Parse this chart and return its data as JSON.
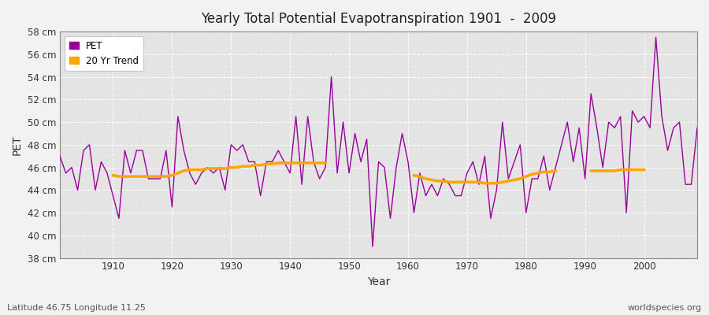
{
  "title": "Yearly Total Potential Evapotranspiration 1901  -  2009",
  "xlabel": "Year",
  "ylabel": "PET",
  "subtitle_left": "Latitude 46.75 Longitude 11.25",
  "subtitle_right": "worldspecies.org",
  "ylim": [
    38,
    58
  ],
  "ytick_labels": [
    "38 cm",
    "40 cm",
    "42 cm",
    "44 cm",
    "46 cm",
    "48 cm",
    "50 cm",
    "52 cm",
    "54 cm",
    "56 cm",
    "58 cm"
  ],
  "ytick_values": [
    38,
    40,
    42,
    44,
    46,
    48,
    50,
    52,
    54,
    56,
    58
  ],
  "pet_color": "#990099",
  "trend_color": "#FFA500",
  "fig_bg_color": "#F0F0F0",
  "plot_bg_color": "#E8E8E8",
  "legend_labels": [
    "PET",
    "20 Yr Trend"
  ],
  "years": [
    1901,
    1902,
    1903,
    1904,
    1905,
    1906,
    1907,
    1908,
    1909,
    1910,
    1911,
    1912,
    1913,
    1914,
    1915,
    1916,
    1917,
    1918,
    1919,
    1920,
    1921,
    1922,
    1923,
    1924,
    1925,
    1926,
    1927,
    1928,
    1929,
    1930,
    1931,
    1932,
    1933,
    1934,
    1935,
    1936,
    1937,
    1938,
    1939,
    1940,
    1941,
    1942,
    1943,
    1944,
    1945,
    1946,
    1947,
    1948,
    1949,
    1950,
    1951,
    1952,
    1953,
    1954,
    1955,
    1956,
    1957,
    1958,
    1959,
    1960,
    1961,
    1962,
    1963,
    1964,
    1965,
    1966,
    1967,
    1968,
    1969,
    1970,
    1971,
    1972,
    1973,
    1974,
    1975,
    1976,
    1977,
    1978,
    1979,
    1980,
    1981,
    1982,
    1983,
    1984,
    1985,
    1986,
    1987,
    1988,
    1989,
    1990,
    1991,
    1992,
    1993,
    1994,
    1995,
    1996,
    1997,
    1998,
    1999,
    2000,
    2001,
    2002,
    2003,
    2004,
    2005,
    2006,
    2007,
    2008,
    2009
  ],
  "pet_values": [
    47.0,
    45.5,
    46.0,
    44.0,
    47.5,
    48.0,
    44.0,
    46.5,
    45.5,
    43.5,
    41.5,
    47.5,
    45.5,
    47.5,
    47.5,
    45.0,
    45.0,
    45.0,
    47.5,
    42.5,
    50.5,
    47.5,
    45.5,
    44.5,
    45.5,
    46.0,
    45.5,
    46.0,
    44.0,
    48.0,
    47.5,
    48.0,
    46.5,
    46.5,
    43.5,
    46.5,
    46.5,
    47.5,
    46.5,
    45.5,
    50.5,
    44.5,
    50.5,
    46.5,
    45.0,
    46.0,
    54.0,
    45.5,
    50.0,
    45.5,
    49.0,
    46.5,
    48.5,
    39.0,
    46.5,
    46.0,
    41.5,
    46.0,
    49.0,
    46.5,
    42.0,
    45.5,
    43.5,
    44.5,
    43.5,
    45.0,
    44.5,
    43.5,
    43.5,
    45.5,
    46.5,
    44.5,
    47.0,
    41.5,
    44.0,
    50.0,
    45.0,
    46.5,
    48.0,
    42.0,
    45.0,
    45.0,
    47.0,
    44.0,
    46.0,
    48.0,
    50.0,
    46.5,
    49.5,
    45.0,
    52.5,
    49.5,
    46.0,
    50.0,
    49.5,
    50.5,
    42.0,
    51.0,
    50.0,
    50.5,
    49.5,
    57.5,
    50.5,
    47.5,
    49.5,
    50.0,
    44.5,
    44.5,
    49.5
  ],
  "trend_segments": [
    {
      "years": [
        1910,
        1911,
        1912,
        1913,
        1914,
        1915,
        1916,
        1917,
        1918,
        1919,
        1920,
        1921,
        1922,
        1923,
        1924,
        1925,
        1926,
        1927,
        1928,
        1929,
        1930,
        1931,
        1932,
        1933,
        1934,
        1935,
        1936,
        1937,
        1938,
        1939,
        1940,
        1941,
        1942,
        1943,
        1944,
        1945,
        1946
      ],
      "values": [
        45.3,
        45.2,
        45.2,
        45.2,
        45.2,
        45.2,
        45.2,
        45.2,
        45.2,
        45.2,
        45.3,
        45.5,
        45.7,
        45.8,
        45.8,
        45.8,
        45.9,
        45.9,
        45.9,
        45.9,
        46.0,
        46.0,
        46.1,
        46.1,
        46.2,
        46.2,
        46.3,
        46.3,
        46.4,
        46.4,
        46.4,
        46.4,
        46.4,
        46.4,
        46.4,
        46.4,
        46.4
      ]
    },
    {
      "years": [
        1961,
        1962,
        1963,
        1964,
        1965,
        1966,
        1967,
        1968,
        1969,
        1970,
        1971,
        1972,
        1973,
        1974,
        1975,
        1976,
        1977,
        1978,
        1979,
        1980,
        1981,
        1982,
        1983,
        1984,
        1985
      ],
      "values": [
        45.3,
        45.2,
        45.0,
        44.9,
        44.8,
        44.8,
        44.7,
        44.7,
        44.7,
        44.7,
        44.7,
        44.7,
        44.6,
        44.6,
        44.6,
        44.7,
        44.8,
        44.9,
        45.0,
        45.2,
        45.4,
        45.5,
        45.6,
        45.6,
        45.7
      ]
    },
    {
      "years": [
        1991,
        1992,
        1993,
        1994,
        1995,
        1996,
        1997,
        1998,
        1999,
        2000
      ],
      "values": [
        45.7,
        45.7,
        45.7,
        45.7,
        45.7,
        45.8,
        45.8,
        45.8,
        45.8,
        45.8
      ]
    }
  ]
}
